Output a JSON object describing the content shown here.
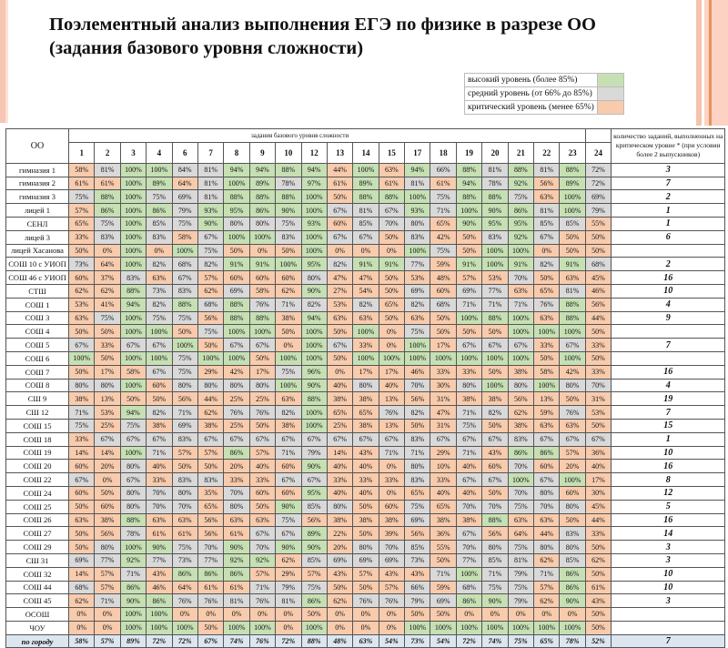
{
  "title": "Поэлементный анализ выполнения ЕГЭ по физике в разрезе ОО (задания базового уровня сложности)",
  "legend": [
    {
      "label": "высокий уровень (более 85%)",
      "color": "#c6e0b4"
    },
    {
      "label": "средний уровень (от 66% до 85%)",
      "color": "#d9d9d9"
    },
    {
      "label": "критический уровень (менее 65%)",
      "color": "#f8cbad"
    }
  ],
  "table": {
    "oo_header": "ОО",
    "group_header": "задания базового уровня сложности",
    "crit_header": "количество заданий, выполненных на критическом уровне * (при условии более 2 выпускников)",
    "tasks": [
      "1",
      "2",
      "3",
      "4",
      "6",
      "7",
      "8",
      "9",
      "10",
      "12",
      "13",
      "14",
      "15",
      "17",
      "18",
      "19",
      "20",
      "21",
      "22",
      "23",
      "24"
    ],
    "rows": [
      {
        "name": "гимназия 1",
        "vals": [
          "58%",
          "81%",
          "100%",
          "100%",
          "84%",
          "81%",
          "94%",
          "94%",
          "88%",
          "94%",
          "44%",
          "100%",
          "63%",
          "94%",
          "66%",
          "88%",
          "81%",
          "88%",
          "81%",
          "88%",
          "72%"
        ],
        "crit": "3"
      },
      {
        "name": "гимназия 2",
        "vals": [
          "61%",
          "61%",
          "100%",
          "89%",
          "64%",
          "81%",
          "100%",
          "89%",
          "78%",
          "97%",
          "61%",
          "89%",
          "61%",
          "81%",
          "61%",
          "94%",
          "78%",
          "92%",
          "56%",
          "89%",
          "72%"
        ],
        "crit": "7"
      },
      {
        "name": "гимназия 3",
        "vals": [
          "75%",
          "88%",
          "100%",
          "75%",
          "69%",
          "81%",
          "88%",
          "88%",
          "88%",
          "100%",
          "50%",
          "88%",
          "88%",
          "100%",
          "75%",
          "88%",
          "88%",
          "75%",
          "63%",
          "100%",
          "69%"
        ],
        "crit": "2"
      },
      {
        "name": "лицей 1",
        "vals": [
          "57%",
          "86%",
          "100%",
          "86%",
          "79%",
          "93%",
          "95%",
          "86%",
          "90%",
          "100%",
          "67%",
          "81%",
          "67%",
          "93%",
          "71%",
          "100%",
          "90%",
          "86%",
          "81%",
          "100%",
          "79%"
        ],
        "crit": "1"
      },
      {
        "name": "СЕНЛ",
        "vals": [
          "65%",
          "75%",
          "100%",
          "85%",
          "75%",
          "90%",
          "80%",
          "80%",
          "75%",
          "93%",
          "60%",
          "85%",
          "70%",
          "80%",
          "65%",
          "90%",
          "95%",
          "95%",
          "85%",
          "85%",
          "55%"
        ],
        "crit": "1"
      },
      {
        "name": "лицей 3",
        "vals": [
          "33%",
          "83%",
          "100%",
          "83%",
          "58%",
          "67%",
          "100%",
          "100%",
          "83%",
          "100%",
          "67%",
          "67%",
          "50%",
          "83%",
          "42%",
          "50%",
          "83%",
          "92%",
          "67%",
          "50%",
          "50%"
        ],
        "crit": "6"
      },
      {
        "name": "лицей Хасанова",
        "vals": [
          "50%",
          "0%",
          "100%",
          "0%",
          "100%",
          "75%",
          "50%",
          "0%",
          "50%",
          "100%",
          "0%",
          "0%",
          "0%",
          "100%",
          "75%",
          "50%",
          "100%",
          "100%",
          "0%",
          "50%",
          "50%"
        ],
        "crit": ""
      },
      {
        "name": "СОШ 10 с УИОП",
        "vals": [
          "73%",
          "64%",
          "100%",
          "82%",
          "68%",
          "82%",
          "91%",
          "91%",
          "100%",
          "95%",
          "82%",
          "91%",
          "91%",
          "77%",
          "59%",
          "91%",
          "100%",
          "91%",
          "82%",
          "91%",
          "68%"
        ],
        "crit": "2"
      },
      {
        "name": "СОШ 46 с УИОП",
        "vals": [
          "60%",
          "37%",
          "83%",
          "63%",
          "67%",
          "57%",
          "60%",
          "60%",
          "60%",
          "80%",
          "47%",
          "47%",
          "50%",
          "53%",
          "48%",
          "57%",
          "53%",
          "70%",
          "50%",
          "63%",
          "45%"
        ],
        "crit": "16"
      },
      {
        "name": "СТШ",
        "vals": [
          "62%",
          "62%",
          "88%",
          "73%",
          "83%",
          "62%",
          "69%",
          "58%",
          "62%",
          "90%",
          "27%",
          "54%",
          "50%",
          "69%",
          "60%",
          "69%",
          "77%",
          "63%",
          "65%",
          "81%",
          "46%"
        ],
        "crit": "10"
      },
      {
        "name": "СОШ 1",
        "vals": [
          "53%",
          "41%",
          "94%",
          "82%",
          "88%",
          "68%",
          "88%",
          "76%",
          "71%",
          "82%",
          "53%",
          "82%",
          "65%",
          "82%",
          "68%",
          "71%",
          "71%",
          "71%",
          "76%",
          "88%",
          "56%"
        ],
        "crit": "4"
      },
      {
        "name": "СОШ 3",
        "vals": [
          "63%",
          "75%",
          "100%",
          "75%",
          "75%",
          "56%",
          "88%",
          "88%",
          "38%",
          "94%",
          "63%",
          "63%",
          "50%",
          "63%",
          "50%",
          "100%",
          "88%",
          "100%",
          "63%",
          "88%",
          "44%"
        ],
        "crit": "9"
      },
      {
        "name": "СОШ 4",
        "vals": [
          "50%",
          "50%",
          "100%",
          "100%",
          "50%",
          "75%",
          "100%",
          "100%",
          "50%",
          "100%",
          "50%",
          "100%",
          "0%",
          "75%",
          "50%",
          "50%",
          "50%",
          "100%",
          "100%",
          "100%",
          "50%"
        ],
        "crit": ""
      },
      {
        "name": "СОШ 5",
        "vals": [
          "67%",
          "33%",
          "67%",
          "67%",
          "100%",
          "50%",
          "67%",
          "67%",
          "0%",
          "100%",
          "67%",
          "33%",
          "0%",
          "100%",
          "17%",
          "67%",
          "67%",
          "67%",
          "33%",
          "67%",
          "33%"
        ],
        "crit": "7"
      },
      {
        "name": "СОШ 6",
        "vals": [
          "100%",
          "50%",
          "100%",
          "100%",
          "75%",
          "100%",
          "100%",
          "50%",
          "100%",
          "100%",
          "50%",
          "100%",
          "100%",
          "100%",
          "100%",
          "100%",
          "100%",
          "100%",
          "50%",
          "100%",
          "50%"
        ],
        "crit": ""
      },
      {
        "name": "СОШ 7",
        "vals": [
          "50%",
          "17%",
          "58%",
          "67%",
          "75%",
          "29%",
          "42%",
          "17%",
          "75%",
          "96%",
          "0%",
          "17%",
          "17%",
          "46%",
          "33%",
          "33%",
          "50%",
          "38%",
          "58%",
          "42%",
          "33%"
        ],
        "crit": "16"
      },
      {
        "name": "СОШ 8",
        "vals": [
          "80%",
          "80%",
          "100%",
          "60%",
          "80%",
          "80%",
          "80%",
          "80%",
          "100%",
          "90%",
          "40%",
          "80%",
          "40%",
          "70%",
          "30%",
          "80%",
          "100%",
          "80%",
          "100%",
          "80%",
          "70%"
        ],
        "crit": "4"
      },
      {
        "name": "СШ 9",
        "vals": [
          "38%",
          "13%",
          "50%",
          "50%",
          "56%",
          "44%",
          "25%",
          "25%",
          "63%",
          "88%",
          "38%",
          "38%",
          "13%",
          "56%",
          "31%",
          "38%",
          "38%",
          "56%",
          "13%",
          "50%",
          "31%"
        ],
        "crit": "19"
      },
      {
        "name": "СШ 12",
        "vals": [
          "71%",
          "53%",
          "94%",
          "82%",
          "71%",
          "62%",
          "76%",
          "76%",
          "82%",
          "100%",
          "65%",
          "65%",
          "76%",
          "82%",
          "47%",
          "71%",
          "82%",
          "62%",
          "59%",
          "76%",
          "53%"
        ],
        "crit": "7"
      },
      {
        "name": "СОШ 15",
        "vals": [
          "75%",
          "25%",
          "75%",
          "38%",
          "69%",
          "38%",
          "25%",
          "50%",
          "38%",
          "100%",
          "25%",
          "38%",
          "13%",
          "50%",
          "31%",
          "75%",
          "50%",
          "38%",
          "63%",
          "63%",
          "50%"
        ],
        "crit": "15"
      },
      {
        "name": "СОШ 18",
        "vals": [
          "33%",
          "67%",
          "67%",
          "67%",
          "83%",
          "67%",
          "67%",
          "67%",
          "67%",
          "67%",
          "67%",
          "67%",
          "67%",
          "83%",
          "67%",
          "67%",
          "67%",
          "83%",
          "67%",
          "67%",
          "67%"
        ],
        "crit": "1"
      },
      {
        "name": "СОШ 19",
        "vals": [
          "14%",
          "14%",
          "100%",
          "71%",
          "57%",
          "57%",
          "86%",
          "57%",
          "71%",
          "79%",
          "14%",
          "43%",
          "71%",
          "71%",
          "29%",
          "71%",
          "43%",
          "86%",
          "86%",
          "57%",
          "36%"
        ],
        "crit": "10"
      },
      {
        "name": "СОШ 20",
        "vals": [
          "60%",
          "20%",
          "80%",
          "40%",
          "50%",
          "50%",
          "20%",
          "40%",
          "60%",
          "90%",
          "40%",
          "40%",
          "0%",
          "80%",
          "10%",
          "40%",
          "60%",
          "70%",
          "60%",
          "20%",
          "40%"
        ],
        "crit": "16"
      },
      {
        "name": "СОШ 22",
        "vals": [
          "67%",
          "0%",
          "67%",
          "33%",
          "83%",
          "83%",
          "33%",
          "33%",
          "67%",
          "67%",
          "33%",
          "33%",
          "33%",
          "83%",
          "33%",
          "67%",
          "67%",
          "100%",
          "67%",
          "100%",
          "17%"
        ],
        "crit": "8"
      },
      {
        "name": "СОШ 24",
        "vals": [
          "60%",
          "50%",
          "80%",
          "70%",
          "80%",
          "35%",
          "70%",
          "60%",
          "60%",
          "95%",
          "40%",
          "40%",
          "0%",
          "65%",
          "40%",
          "40%",
          "50%",
          "70%",
          "80%",
          "60%",
          "30%"
        ],
        "crit": "12"
      },
      {
        "name": "СОШ 25",
        "vals": [
          "50%",
          "60%",
          "80%",
          "70%",
          "70%",
          "65%",
          "80%",
          "50%",
          "90%",
          "85%",
          "80%",
          "50%",
          "60%",
          "75%",
          "65%",
          "70%",
          "70%",
          "75%",
          "70%",
          "80%",
          "45%"
        ],
        "crit": "5"
      },
      {
        "name": "СОШ 26",
        "vals": [
          "63%",
          "38%",
          "88%",
          "63%",
          "63%",
          "56%",
          "63%",
          "63%",
          "75%",
          "56%",
          "38%",
          "38%",
          "38%",
          "69%",
          "38%",
          "38%",
          "88%",
          "63%",
          "63%",
          "50%",
          "44%"
        ],
        "crit": "16"
      },
      {
        "name": "СОШ 27",
        "vals": [
          "50%",
          "56%",
          "78%",
          "61%",
          "61%",
          "56%",
          "61%",
          "67%",
          "67%",
          "89%",
          "22%",
          "50%",
          "39%",
          "56%",
          "36%",
          "67%",
          "56%",
          "64%",
          "44%",
          "83%",
          "33%"
        ],
        "crit": "14"
      },
      {
        "name": "СОШ 29",
        "vals": [
          "50%",
          "80%",
          "100%",
          "90%",
          "75%",
          "70%",
          "90%",
          "70%",
          "90%",
          "90%",
          "20%",
          "80%",
          "70%",
          "85%",
          "55%",
          "70%",
          "80%",
          "75%",
          "80%",
          "80%",
          "50%"
        ],
        "crit": "3"
      },
      {
        "name": "СШ 31",
        "vals": [
          "69%",
          "77%",
          "92%",
          "77%",
          "73%",
          "77%",
          "92%",
          "92%",
          "62%",
          "85%",
          "69%",
          "69%",
          "69%",
          "73%",
          "50%",
          "77%",
          "85%",
          "81%",
          "62%",
          "85%",
          "62%"
        ],
        "crit": "3"
      },
      {
        "name": "СОШ 32",
        "vals": [
          "14%",
          "57%",
          "71%",
          "43%",
          "86%",
          "86%",
          "86%",
          "57%",
          "29%",
          "57%",
          "43%",
          "57%",
          "43%",
          "43%",
          "71%",
          "100%",
          "71%",
          "79%",
          "71%",
          "86%",
          "50%"
        ],
        "crit": "10"
      },
      {
        "name": "СОШ 44",
        "vals": [
          "68%",
          "57%",
          "86%",
          "46%",
          "64%",
          "61%",
          "61%",
          "71%",
          "79%",
          "75%",
          "50%",
          "50%",
          "57%",
          "66%",
          "59%",
          "68%",
          "75%",
          "75%",
          "57%",
          "86%",
          "61%"
        ],
        "crit": "10"
      },
      {
        "name": "СОШ 45",
        "vals": [
          "62%",
          "71%",
          "90%",
          "86%",
          "76%",
          "76%",
          "81%",
          "76%",
          "81%",
          "86%",
          "62%",
          "76%",
          "76%",
          "79%",
          "69%",
          "86%",
          "90%",
          "79%",
          "62%",
          "90%",
          "43%"
        ],
        "crit": "3"
      },
      {
        "name": "ОСОШ",
        "vals": [
          "0%",
          "0%",
          "100%",
          "100%",
          "0%",
          "0%",
          "0%",
          "0%",
          "0%",
          "50%",
          "0%",
          "0%",
          "0%",
          "50%",
          "50%",
          "0%",
          "0%",
          "0%",
          "0%",
          "0%",
          "50%"
        ],
        "crit": ""
      },
      {
        "name": "ЧОУ",
        "vals": [
          "0%",
          "0%",
          "100%",
          "100%",
          "100%",
          "50%",
          "100%",
          "100%",
          "0%",
          "100%",
          "0%",
          "0%",
          "0%",
          "100%",
          "100%",
          "100%",
          "100%",
          "100%",
          "100%",
          "100%",
          "50%"
        ],
        "crit": ""
      }
    ],
    "total": {
      "name": "по городу",
      "vals": [
        "58%",
        "57%",
        "89%",
        "72%",
        "72%",
        "67%",
        "74%",
        "76%",
        "72%",
        "88%",
        "48%",
        "63%",
        "54%",
        "73%",
        "54%",
        "72%",
        "74%",
        "75%",
        "65%",
        "78%",
        "52%"
      ],
      "crit": "7"
    }
  }
}
